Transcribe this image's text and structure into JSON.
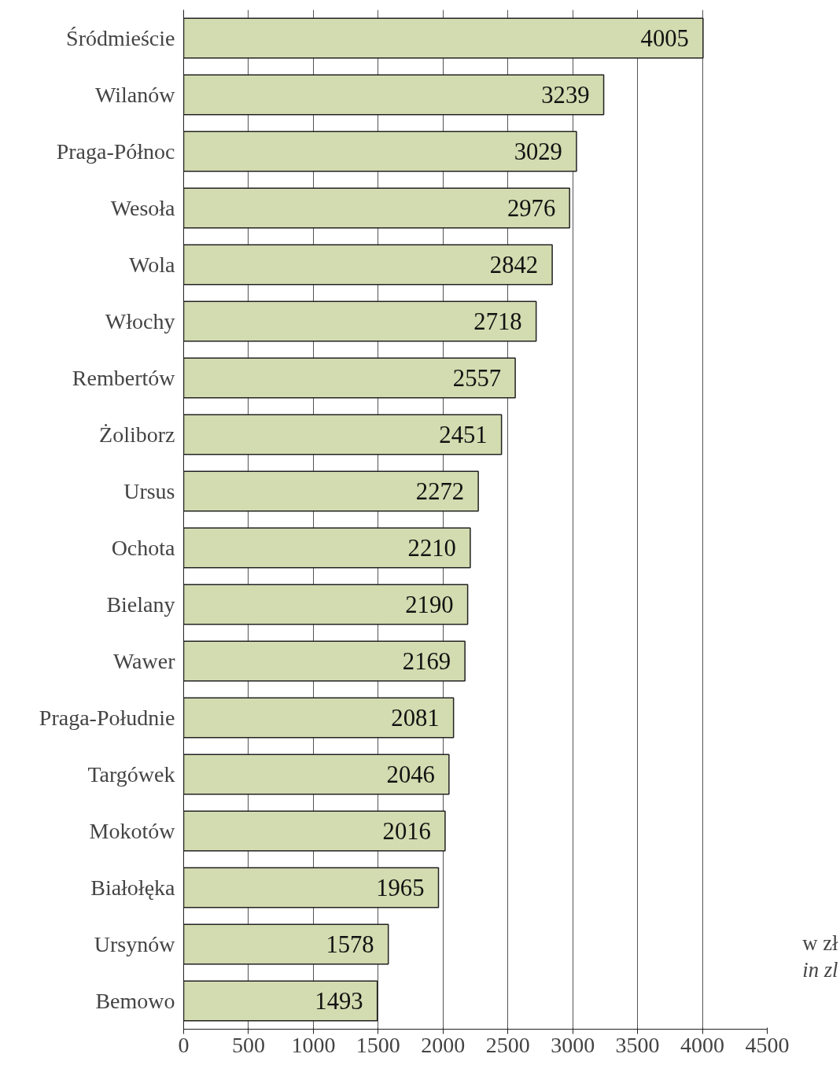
{
  "chart_data": {
    "type": "bar",
    "orientation": "horizontal",
    "categories": [
      "Śródmieście",
      "Wilanów",
      "Praga-Północ",
      "Wesoła",
      "Wola",
      "Włochy",
      "Rembertów",
      "Żoliborz",
      "Ursus",
      "Ochota",
      "Bielany",
      "Wawer",
      "Praga-Południe",
      "Targówek",
      "Mokotów",
      "Białołęka",
      "Ursynów",
      "Bemowo"
    ],
    "values": [
      4005,
      3239,
      3029,
      2976,
      2842,
      2718,
      2557,
      2451,
      2272,
      2210,
      2190,
      2169,
      2081,
      2046,
      2016,
      1965,
      1578,
      1493
    ],
    "color": "#d3dbb0",
    "xlim": [
      0,
      4500
    ],
    "xticks": [
      0,
      500,
      1000,
      1500,
      2000,
      2500,
      3000,
      3500,
      4000,
      4500
    ],
    "grid": "x",
    "data_labels": true,
    "annotations": [
      "w zł",
      "in zl"
    ]
  }
}
